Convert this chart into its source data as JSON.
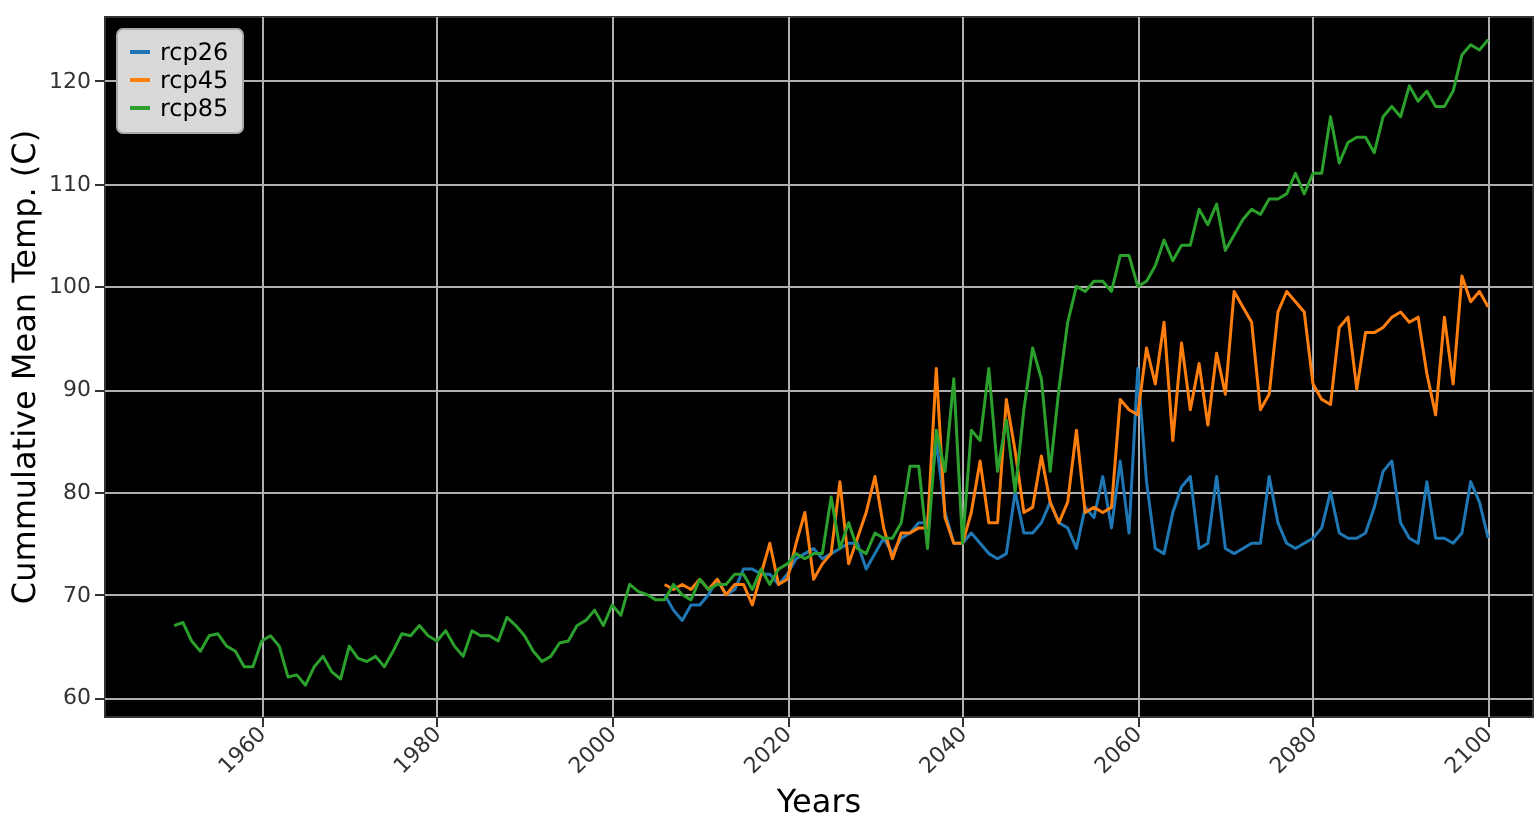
{
  "chart_data": {
    "type": "line",
    "xlabel": "Years",
    "ylabel": "Cummulative Mean Temp. (C)",
    "xlim": [
      1942,
      2105
    ],
    "ylim": [
      58.2,
      126.3
    ],
    "xticks": [
      1960,
      1980,
      2000,
      2020,
      2040,
      2060,
      2080,
      2100
    ],
    "yticks": [
      60,
      70,
      80,
      90,
      100,
      110,
      120
    ],
    "grid": true,
    "legend": "top left",
    "line_style": "solid",
    "series": [
      {
        "name": "rcp26",
        "color": "#1f77b4",
        "x": [
          2006,
          2007,
          2008,
          2009,
          2010,
          2011,
          2012,
          2013,
          2014,
          2015,
          2016,
          2017,
          2018,
          2019,
          2020,
          2021,
          2022,
          2023,
          2024,
          2025,
          2026,
          2027,
          2028,
          2029,
          2030,
          2031,
          2032,
          2033,
          2034,
          2035,
          2036,
          2037,
          2038,
          2039,
          2040,
          2041,
          2042,
          2043,
          2044,
          2045,
          2046,
          2047,
          2048,
          2049,
          2050,
          2051,
          2052,
          2053,
          2054,
          2055,
          2056,
          2057,
          2058,
          2059,
          2060,
          2061,
          2062,
          2063,
          2064,
          2065,
          2066,
          2067,
          2068,
          2069,
          2070,
          2071,
          2072,
          2073,
          2074,
          2075,
          2076,
          2077,
          2078,
          2079,
          2080,
          2081,
          2082,
          2083,
          2084,
          2085,
          2086,
          2087,
          2088,
          2089,
          2090,
          2091,
          2092,
          2093,
          2094,
          2095,
          2096,
          2097,
          2098,
          2099,
          2100
        ],
        "values": [
          70,
          68.5,
          67.5,
          69,
          69,
          70,
          71.5,
          70,
          70.5,
          72.5,
          72.5,
          72,
          72,
          71,
          72,
          73.5,
          74,
          74.5,
          73.5,
          74,
          74.5,
          75,
          75,
          72.5,
          74,
          75.5,
          74,
          75.5,
          76,
          77,
          77,
          85,
          78,
          75,
          75,
          76,
          75,
          74,
          73.5,
          74,
          80,
          76,
          76,
          77,
          79,
          77,
          76.5,
          74.5,
          78.5,
          77.5,
          81.5,
          76.5,
          83,
          76,
          92,
          81,
          74.5,
          74,
          78,
          80.5,
          81.5,
          74.5,
          75,
          81.5,
          74.5,
          74,
          74.5,
          75,
          75,
          81.5,
          77,
          75,
          74.5,
          75,
          75.5,
          76.5,
          80,
          76,
          75.5,
          75.5,
          76,
          78.5,
          82,
          83,
          77,
          75.5,
          75,
          81,
          75.5,
          75.5,
          75,
          76,
          81,
          79,
          75.5
        ]
      },
      {
        "name": "rcp45",
        "color": "#ff7f0e",
        "x": [
          2006,
          2007,
          2008,
          2009,
          2010,
          2011,
          2012,
          2013,
          2014,
          2015,
          2016,
          2017,
          2018,
          2019,
          2020,
          2021,
          2022,
          2023,
          2024,
          2025,
          2026,
          2027,
          2028,
          2029,
          2030,
          2031,
          2032,
          2033,
          2034,
          2035,
          2036,
          2037,
          2038,
          2039,
          2040,
          2041,
          2042,
          2043,
          2044,
          2045,
          2046,
          2047,
          2048,
          2049,
          2050,
          2051,
          2052,
          2053,
          2054,
          2055,
          2056,
          2057,
          2058,
          2059,
          2060,
          2061,
          2062,
          2063,
          2064,
          2065,
          2066,
          2067,
          2068,
          2069,
          2070,
          2071,
          2072,
          2073,
          2074,
          2075,
          2076,
          2077,
          2078,
          2079,
          2080,
          2081,
          2082,
          2083,
          2084,
          2085,
          2086,
          2087,
          2088,
          2089,
          2090,
          2091,
          2092,
          2093,
          2094,
          2095,
          2096,
          2097,
          2098,
          2099,
          2100
        ],
        "values": [
          71,
          70.5,
          71,
          70.5,
          71.5,
          70.5,
          71.5,
          70,
          71,
          71,
          69,
          72,
          75,
          71,
          71.5,
          75,
          78,
          71.5,
          73,
          74,
          81,
          73,
          75.5,
          78,
          81.5,
          76.5,
          73.5,
          76,
          76,
          76.5,
          76.5,
          92,
          77.5,
          75,
          75,
          78,
          83,
          77,
          77,
          89,
          84,
          78,
          78.5,
          83.5,
          79,
          77,
          79,
          86,
          78,
          78.5,
          78,
          78.5,
          89,
          88,
          87.5,
          94,
          90.5,
          96.5,
          85,
          94.5,
          88,
          92.5,
          86.5,
          93.5,
          89.5,
          99.5,
          98,
          96.5,
          88,
          89.5,
          97.5,
          99.5,
          98.5,
          97.5,
          90.5,
          89,
          88.5,
          96,
          97,
          90,
          95.5,
          95.5,
          96,
          97,
          97.5,
          96.5,
          97,
          91.5,
          87.5,
          97,
          90.5,
          101,
          98.5,
          99.5,
          98
        ]
      },
      {
        "name": "rcp85",
        "color": "#2ca02c",
        "x": [
          1950,
          1951,
          1952,
          1953,
          1954,
          1955,
          1956,
          1957,
          1958,
          1959,
          1960,
          1961,
          1962,
          1963,
          1964,
          1965,
          1966,
          1967,
          1968,
          1969,
          1970,
          1971,
          1972,
          1973,
          1974,
          1975,
          1976,
          1977,
          1978,
          1979,
          1980,
          1981,
          1982,
          1983,
          1984,
          1985,
          1986,
          1987,
          1988,
          1989,
          1990,
          1991,
          1992,
          1993,
          1994,
          1995,
          1996,
          1997,
          1998,
          1999,
          2000,
          2001,
          2002,
          2003,
          2004,
          2005,
          2006,
          2007,
          2008,
          2009,
          2010,
          2011,
          2012,
          2013,
          2014,
          2015,
          2016,
          2017,
          2018,
          2019,
          2020,
          2021,
          2022,
          2023,
          2024,
          2025,
          2026,
          2027,
          2028,
          2029,
          2030,
          2031,
          2032,
          2033,
          2034,
          2035,
          2036,
          2037,
          2038,
          2039,
          2040,
          2041,
          2042,
          2043,
          2044,
          2045,
          2046,
          2047,
          2048,
          2049,
          2050,
          2051,
          2052,
          2053,
          2054,
          2055,
          2056,
          2057,
          2058,
          2059,
          2060,
          2061,
          2062,
          2063,
          2064,
          2065,
          2066,
          2067,
          2068,
          2069,
          2070,
          2071,
          2072,
          2073,
          2074,
          2075,
          2076,
          2077,
          2078,
          2079,
          2080,
          2081,
          2082,
          2083,
          2084,
          2085,
          2086,
          2087,
          2088,
          2089,
          2090,
          2091,
          2092,
          2093,
          2094,
          2095,
          2096,
          2097,
          2098,
          2099,
          2100
        ],
        "values": [
          67,
          67.3,
          65.5,
          64.5,
          66,
          66.2,
          65,
          64.5,
          63,
          63,
          65.5,
          66,
          65,
          62,
          62.2,
          61.2,
          63,
          64,
          62.5,
          61.8,
          65,
          63.8,
          63.5,
          64,
          63,
          64.5,
          66.2,
          66,
          67,
          66,
          65.5,
          66.5,
          65,
          64,
          66.5,
          66,
          66,
          65.5,
          67.8,
          67,
          66,
          64.5,
          63.5,
          64,
          65.3,
          65.5,
          67,
          67.5,
          68.5,
          67,
          69,
          68,
          71,
          70.3,
          70,
          69.5,
          69.5,
          71,
          70,
          69.5,
          71.5,
          70.5,
          71,
          71,
          72,
          72,
          70.5,
          72.5,
          71,
          72.5,
          73,
          74,
          73.5,
          74,
          74,
          79.5,
          74.5,
          77,
          74.5,
          74,
          76,
          75.5,
          75.5,
          77,
          82.5,
          82.5,
          74.5,
          86,
          82,
          91,
          75,
          86,
          85,
          92,
          82,
          87,
          80,
          88,
          94,
          91,
          82,
          90,
          96.5,
          100,
          99.5,
          100.5,
          100.5,
          99.5,
          103,
          103,
          100,
          100.5,
          102,
          104.5,
          102.5,
          104,
          104,
          107.5,
          106,
          108,
          103.5,
          105,
          106.5,
          107.5,
          107,
          108.5,
          108.5,
          109,
          111,
          109,
          111,
          111,
          116.5,
          112,
          114,
          114.5,
          114.5,
          113,
          116.5,
          117.5,
          116.5,
          119.5,
          118,
          119,
          117.5,
          117.5,
          119,
          122.5,
          123.5,
          123,
          124
        ]
      }
    ]
  }
}
